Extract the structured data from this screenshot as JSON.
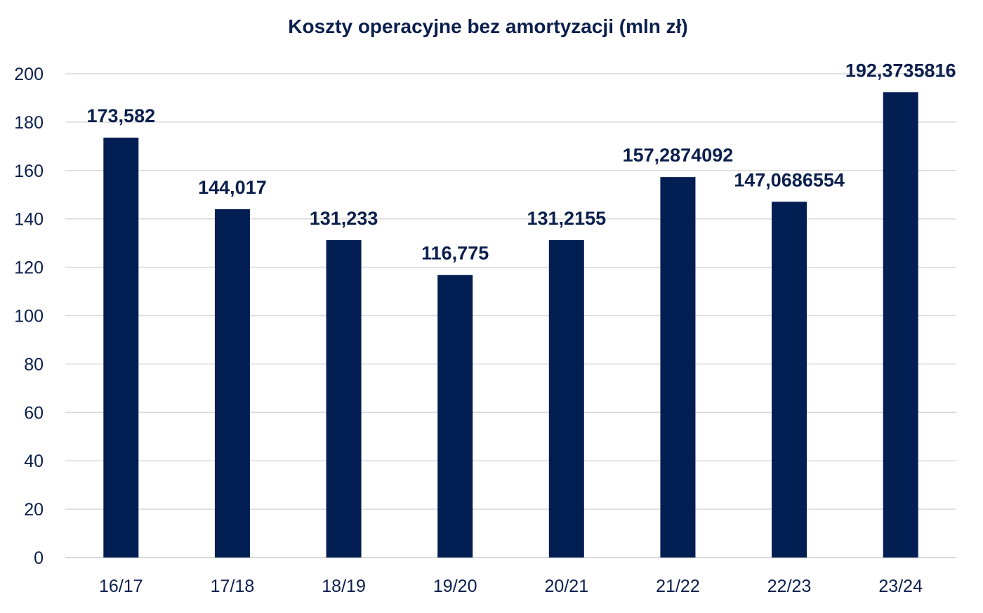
{
  "chart_data": {
    "type": "bar",
    "title": "Koszty operacyjne bez amortyzacji (mln zł)",
    "xlabel": "",
    "ylabel": "",
    "categories": [
      "16/17",
      "17/18",
      "18/19",
      "19/20",
      "20/21",
      "21/22",
      "22/23",
      "23/24"
    ],
    "values": [
      173.582,
      144.017,
      131.233,
      116.775,
      131.2155,
      157.2874092,
      147.0686554,
      192.3735816
    ],
    "data_labels": [
      "173,582",
      "144,017",
      "131,233",
      "116,775",
      "131,2155",
      "157,2874092",
      "147,0686554",
      "192,3735816"
    ],
    "ylim": [
      0,
      200
    ],
    "yticks": [
      0,
      20,
      40,
      60,
      80,
      100,
      120,
      140,
      160,
      180,
      200
    ],
    "grid": true,
    "legend": "none",
    "bar_color": "#021e52",
    "grid_color": "#d9d9d9",
    "text_color": "#0b1f4d"
  }
}
